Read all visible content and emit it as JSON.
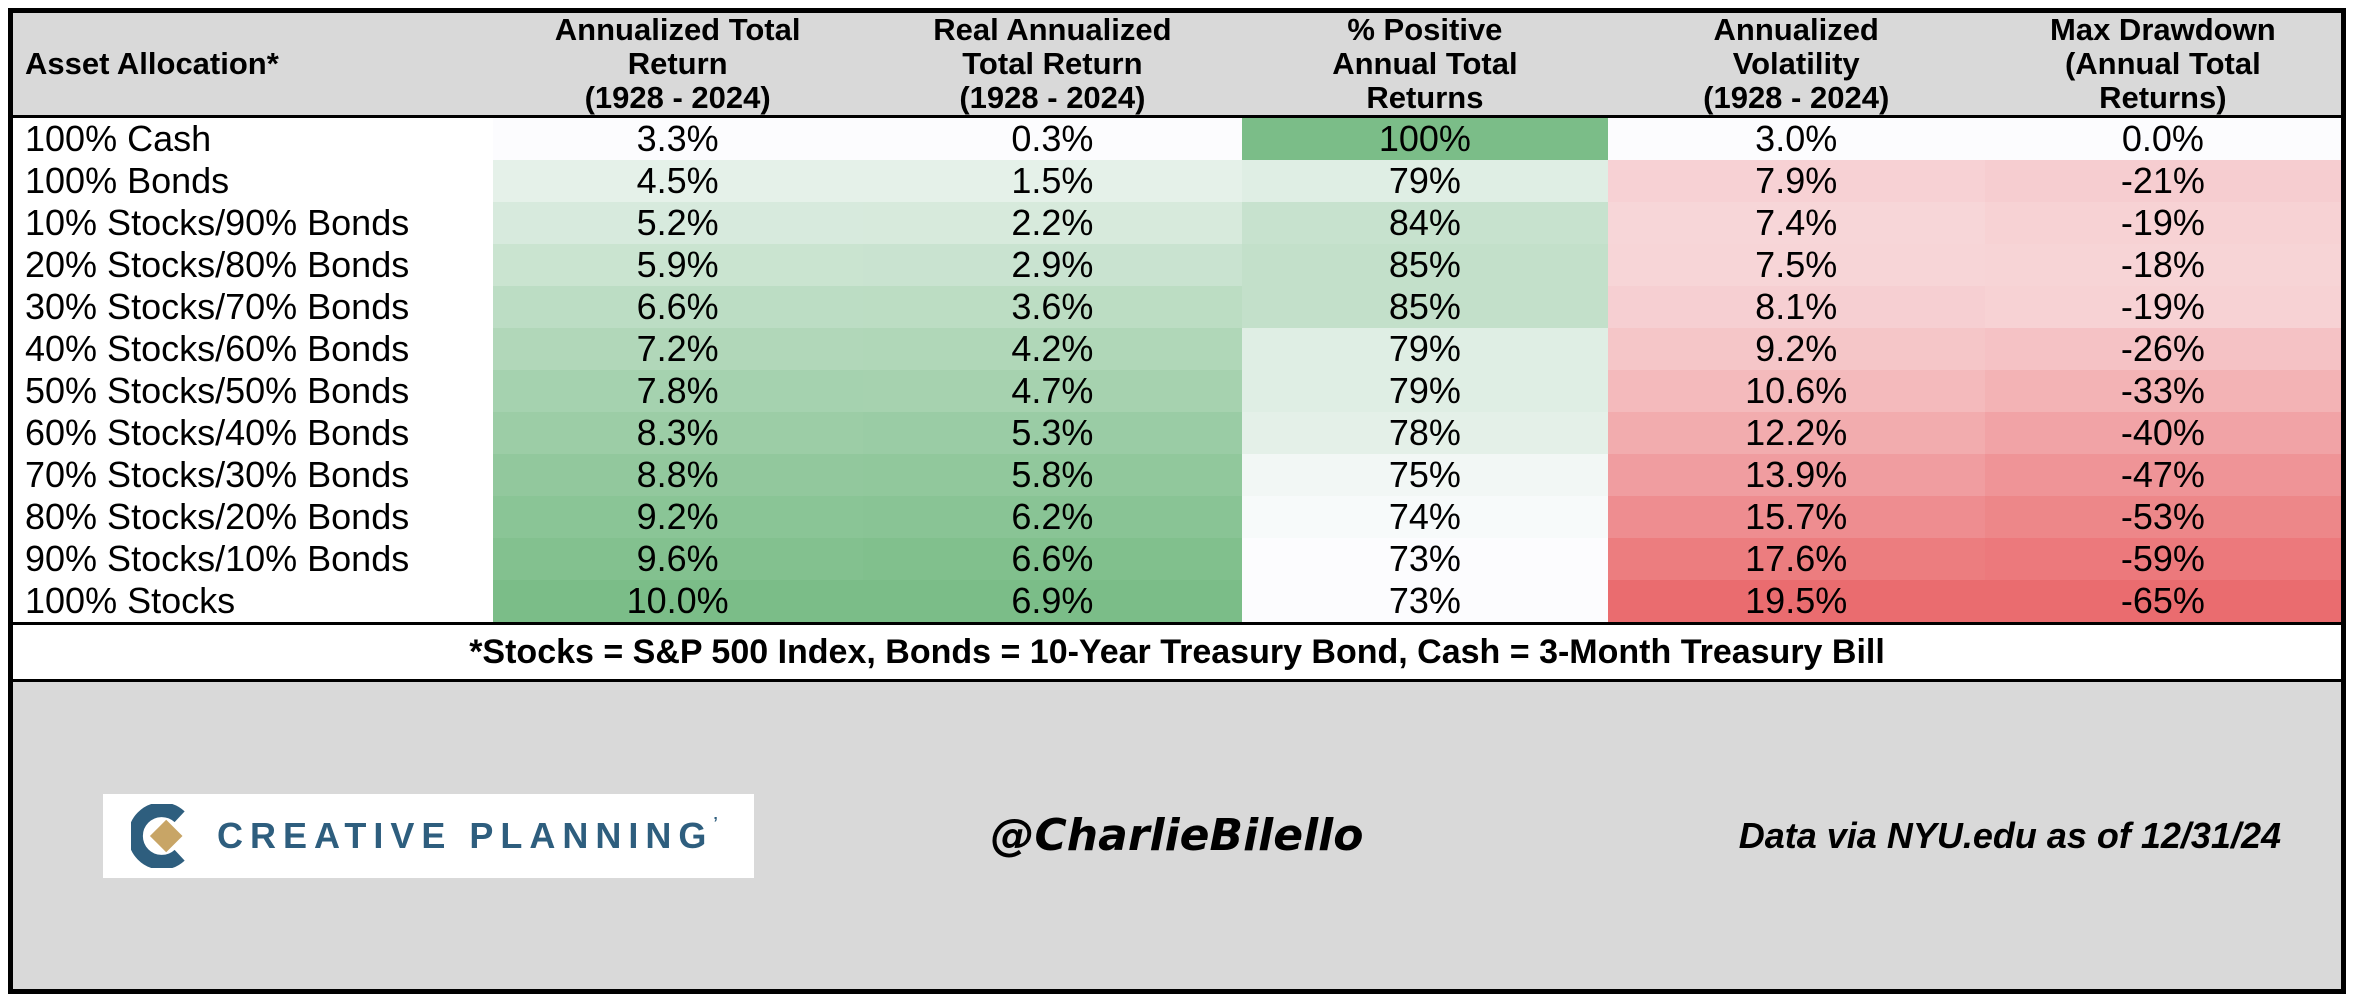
{
  "colors": {
    "header_bg": "#D9D9D9",
    "bottom_bg": "#D9D9D9",
    "scale_min": "#FCFCFE",
    "green_max": "#7BBD88",
    "red_max": "#EA6C6F",
    "border": "#000000",
    "logo_blue": "#2E5E7E",
    "logo_gold": "#C8A566"
  },
  "chart_data": {
    "type": "table",
    "columns": [
      {
        "label": "Asset Allocation*"
      },
      {
        "label": "Annualized Total\nReturn\n(1928 - 2024)",
        "scale": "green",
        "domain": [
          3.3,
          10.0
        ]
      },
      {
        "label": "Real Annualized\nTotal Return\n(1928 - 2024)",
        "scale": "green",
        "domain": [
          0.3,
          6.9
        ]
      },
      {
        "label": "% Positive\nAnnual Total\nReturns",
        "scale": "green",
        "domain": [
          73,
          100
        ]
      },
      {
        "label": "Annualized\nVolatility\n(1928 - 2024)",
        "scale": "red",
        "domain": [
          3.0,
          19.5
        ]
      },
      {
        "label": "Max Drawdown\n(Annual Total\nReturns)",
        "scale": "red",
        "domain": [
          0,
          65
        ],
        "abs": true
      }
    ],
    "rows": [
      {
        "label": "100% Cash",
        "values": [
          "3.3%",
          "0.3%",
          "100%",
          "3.0%",
          "0.0%"
        ]
      },
      {
        "label": "100% Bonds",
        "values": [
          "4.5%",
          "1.5%",
          "79%",
          "7.9%",
          "-21%"
        ]
      },
      {
        "label": "10% Stocks/90% Bonds",
        "values": [
          "5.2%",
          "2.2%",
          "84%",
          "7.4%",
          "-19%"
        ]
      },
      {
        "label": "20% Stocks/80% Bonds",
        "values": [
          "5.9%",
          "2.9%",
          "85%",
          "7.5%",
          "-18%"
        ]
      },
      {
        "label": "30% Stocks/70% Bonds",
        "values": [
          "6.6%",
          "3.6%",
          "85%",
          "8.1%",
          "-19%"
        ]
      },
      {
        "label": "40% Stocks/60% Bonds",
        "values": [
          "7.2%",
          "4.2%",
          "79%",
          "9.2%",
          "-26%"
        ]
      },
      {
        "label": "50% Stocks/50% Bonds",
        "values": [
          "7.8%",
          "4.7%",
          "79%",
          "10.6%",
          "-33%"
        ]
      },
      {
        "label": "60% Stocks/40% Bonds",
        "values": [
          "8.3%",
          "5.3%",
          "78%",
          "12.2%",
          "-40%"
        ]
      },
      {
        "label": "70% Stocks/30% Bonds",
        "values": [
          "8.8%",
          "5.8%",
          "75%",
          "13.9%",
          "-47%"
        ]
      },
      {
        "label": "80% Stocks/20% Bonds",
        "values": [
          "9.2%",
          "6.2%",
          "74%",
          "15.7%",
          "-53%"
        ]
      },
      {
        "label": "90% Stocks/10% Bonds",
        "values": [
          "9.6%",
          "6.6%",
          "73%",
          "17.6%",
          "-59%"
        ]
      },
      {
        "label": "100% Stocks",
        "values": [
          "10.0%",
          "6.9%",
          "73%",
          "19.5%",
          "-65%"
        ]
      }
    ]
  },
  "footnote": "*Stocks = S&P 500 Index, Bonds = 10-Year Treasury Bond, Cash = 3-Month Treasury Bill",
  "footer": {
    "logo_text": "CREATIVE PLANNING",
    "logo_tm": "’",
    "handle": "@CharlieBilello",
    "source": "Data via NYU.edu as of 12/31/24"
  }
}
